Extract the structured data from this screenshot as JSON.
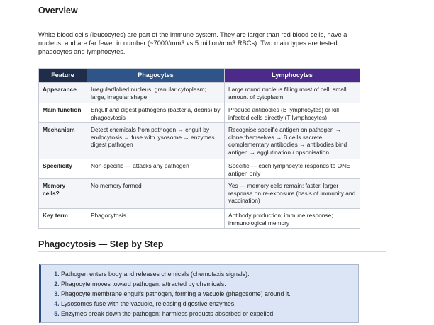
{
  "overview": {
    "heading": "Overview",
    "paragraph": "White blood cells (leucocytes) are part of the immune system. They are larger than red blood cells, have a nucleus, and are far fewer in number (~7000/mm3 vs 5 million/mm3 RBCs). Two main types are tested: phagocytes and lymphocytes."
  },
  "table": {
    "headers": [
      "Feature",
      "Phagocytes",
      "Lymphocytes"
    ],
    "header_colors": [
      "#1f2d4a",
      "#2f5488",
      "#4b2a8a"
    ],
    "rows": [
      [
        "Appearance",
        "Irregular/lobed nucleus; granular cytoplasm; large, irregular shape",
        "Large round nucleus filling most of cell; small amount of cytoplasm"
      ],
      [
        "Main function",
        "Engulf and digest pathogens (bacteria, debris) by phagocytosis",
        "Produce antibodies (B lymphocytes) or kill infected cells directly (T lymphocytes)"
      ],
      [
        "Mechanism",
        "Detect chemicals from pathogen → engulf by endocytosis → fuse with lysosome → enzymes digest pathogen",
        "Recognise specific antigen on pathogen → clone themselves → B cells secrete complementary antibodies → antibodies bind antigen → agglutination / opsonisation"
      ],
      [
        "Specificity",
        "Non-specific — attacks any pathogen",
        "Specific — each lymphocyte responds to ONE antigen only"
      ],
      [
        "Memory cells?",
        "No memory formed",
        "Yes — memory cells remain; faster, larger response on re-exposure (basis of immunity and vaccination)"
      ],
      [
        "Key term",
        "Phagocytosis",
        "Antibody production; immune response; immunological memory"
      ]
    ]
  },
  "phagocytosis": {
    "heading": "Phagocytosis — Step by Step",
    "steps": [
      "Pathogen enters body and releases chemicals (chemotaxis signals).",
      "Phagocyte moves toward pathogen, attracted by chemicals.",
      "Phagocyte membrane engulfs pathogen, forming a vacuole (phagosome) around it.",
      "Lysosomes fuse with the vacuole, releasing digestive enzymes.",
      "Enzymes break down the pathogen; harmless products absorbed or expelled."
    ]
  }
}
